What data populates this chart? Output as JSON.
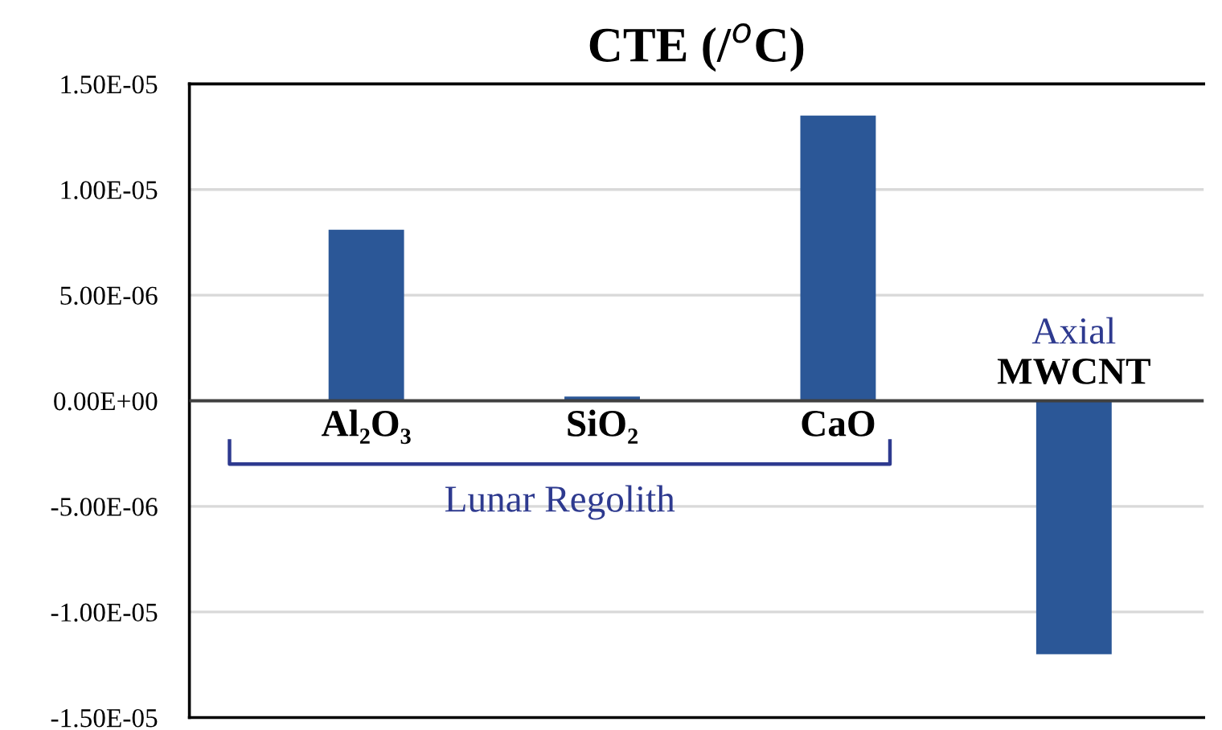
{
  "chart_data": {
    "type": "bar",
    "title": "CTE (/$^{o}$C)",
    "categories": [
      "Al₂O₃",
      "SiO₂",
      "CaO",
      "MWCNT"
    ],
    "values": [
      8.1e-06,
      2e-07,
      1.35e-05,
      -1.2e-05
    ],
    "color": "#2b5797",
    "ylim": [
      -1.5e-05,
      1.5e-05
    ],
    "yticks": [
      {
        "value": -1.5e-05,
        "label": "-1.50E-05"
      },
      {
        "value": -1e-05,
        "label": "-1.00E-05"
      },
      {
        "value": -5e-06,
        "label": "-5.00E-06"
      },
      {
        "value": 0,
        "label": "0.00E+00"
      },
      {
        "value": 5e-06,
        "label": "5.00E-06"
      },
      {
        "value": 1e-05,
        "label": "1.00E-05"
      },
      {
        "value": 1.5e-05,
        "label": "1.50E-05"
      }
    ],
    "grid": "y",
    "annotations": [
      "Lunar Regolith",
      "Axial"
    ]
  }
}
